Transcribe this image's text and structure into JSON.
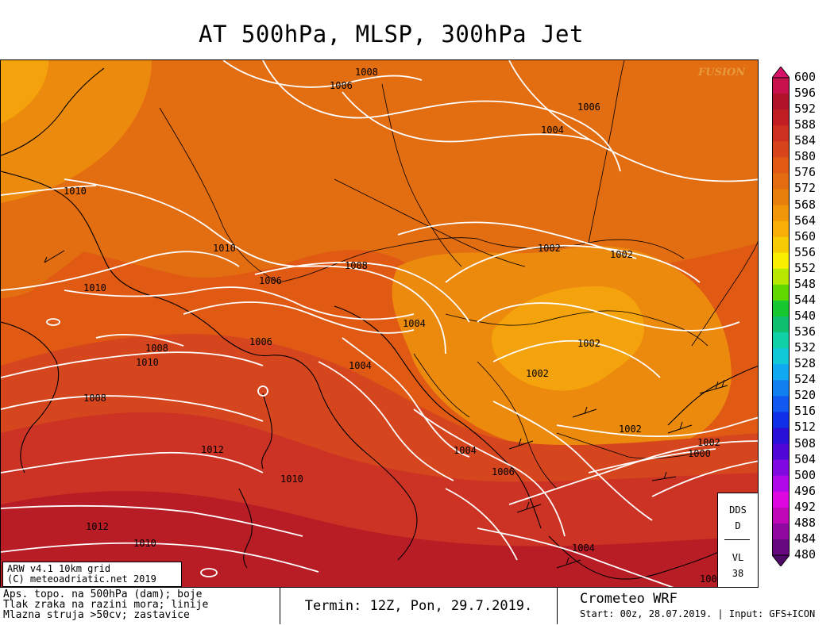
{
  "title": "AT 500hPa, MLSP, 300hPa Jet",
  "watermark": "FUSION",
  "map_colors": {
    "deep_red": "#b81d25",
    "red": "#cc3324",
    "red_orange": "#d6461e",
    "dark_orange": "#e05a14",
    "orange": "#e36d11",
    "light_orange": "#ec8a0d",
    "yellow_orange": "#f5a30c",
    "isobar": "#ffffff",
    "coastline": "#000000"
  },
  "isobar_labels": [
    {
      "text": "1008"
    },
    {
      "text": "1006"
    },
    {
      "text": "1006"
    },
    {
      "text": "1004"
    },
    {
      "text": "1010"
    },
    {
      "text": "1010"
    },
    {
      "text": "1010"
    },
    {
      "text": "1006"
    },
    {
      "text": "1008"
    },
    {
      "text": "1002"
    },
    {
      "text": "1002"
    },
    {
      "text": "1004"
    },
    {
      "text": "1006"
    },
    {
      "text": "1008"
    },
    {
      "text": "1010"
    },
    {
      "text": "1008"
    },
    {
      "text": "1004"
    },
    {
      "text": "1002"
    },
    {
      "text": "1002"
    },
    {
      "text": "1012"
    },
    {
      "text": "1010"
    },
    {
      "text": "1004"
    },
    {
      "text": "1006"
    },
    {
      "text": "1002"
    },
    {
      "text": "1002"
    },
    {
      "text": "1000"
    },
    {
      "text": "1012"
    },
    {
      "text": "1010"
    },
    {
      "text": "1004"
    },
    {
      "text": "100"
    }
  ],
  "dds_box": {
    "line1": "DDS",
    "line2": "D",
    "line3": "VL",
    "line4": "38"
  },
  "version_box": {
    "line1": "ARW v4.1 10km grid",
    "line2": "(C) meteoadriatic.net 2019"
  },
  "legend": {
    "labels": [
      "600",
      "596",
      "592",
      "588",
      "584",
      "580",
      "576",
      "572",
      "568",
      "564",
      "560",
      "556",
      "552",
      "548",
      "544",
      "540",
      "536",
      "532",
      "528",
      "524",
      "520",
      "516",
      "512",
      "508",
      "504",
      "500",
      "496",
      "492",
      "488",
      "484",
      "480"
    ],
    "colors": [
      "#c8104a",
      "#b0132a",
      "#c01e22",
      "#ce3020",
      "#d8441c",
      "#e05a14",
      "#e46c10",
      "#e87e0c",
      "#f09608",
      "#f8ae06",
      "#f8cc04",
      "#f8f000",
      "#b8e800",
      "#60d800",
      "#18c830",
      "#10c070",
      "#10d0a8",
      "#10c8d8",
      "#10a8f0",
      "#1080f0",
      "#1058f0",
      "#1030e8",
      "#2810d8",
      "#5008d8",
      "#8008e0",
      "#b008e8",
      "#e008e0",
      "#c008b8",
      "#9008a0",
      "#680880"
    ],
    "top_arrow_color": "#d8106a",
    "bottom_arrow_color": "#500868"
  },
  "footer": {
    "desc_line1": "Aps. topo. na 500hPa (dam); boje",
    "desc_line2": "Tlak zraka na razini mora; linije",
    "desc_line3": "Mlazna struja >50cv; zastavice",
    "term": "Termin: 12Z, Pon, 29.7.2019.",
    "brand": "Crometeo WRF",
    "start": "Start: 00z, 28.07.2019. | Input: GFS+ICON"
  }
}
